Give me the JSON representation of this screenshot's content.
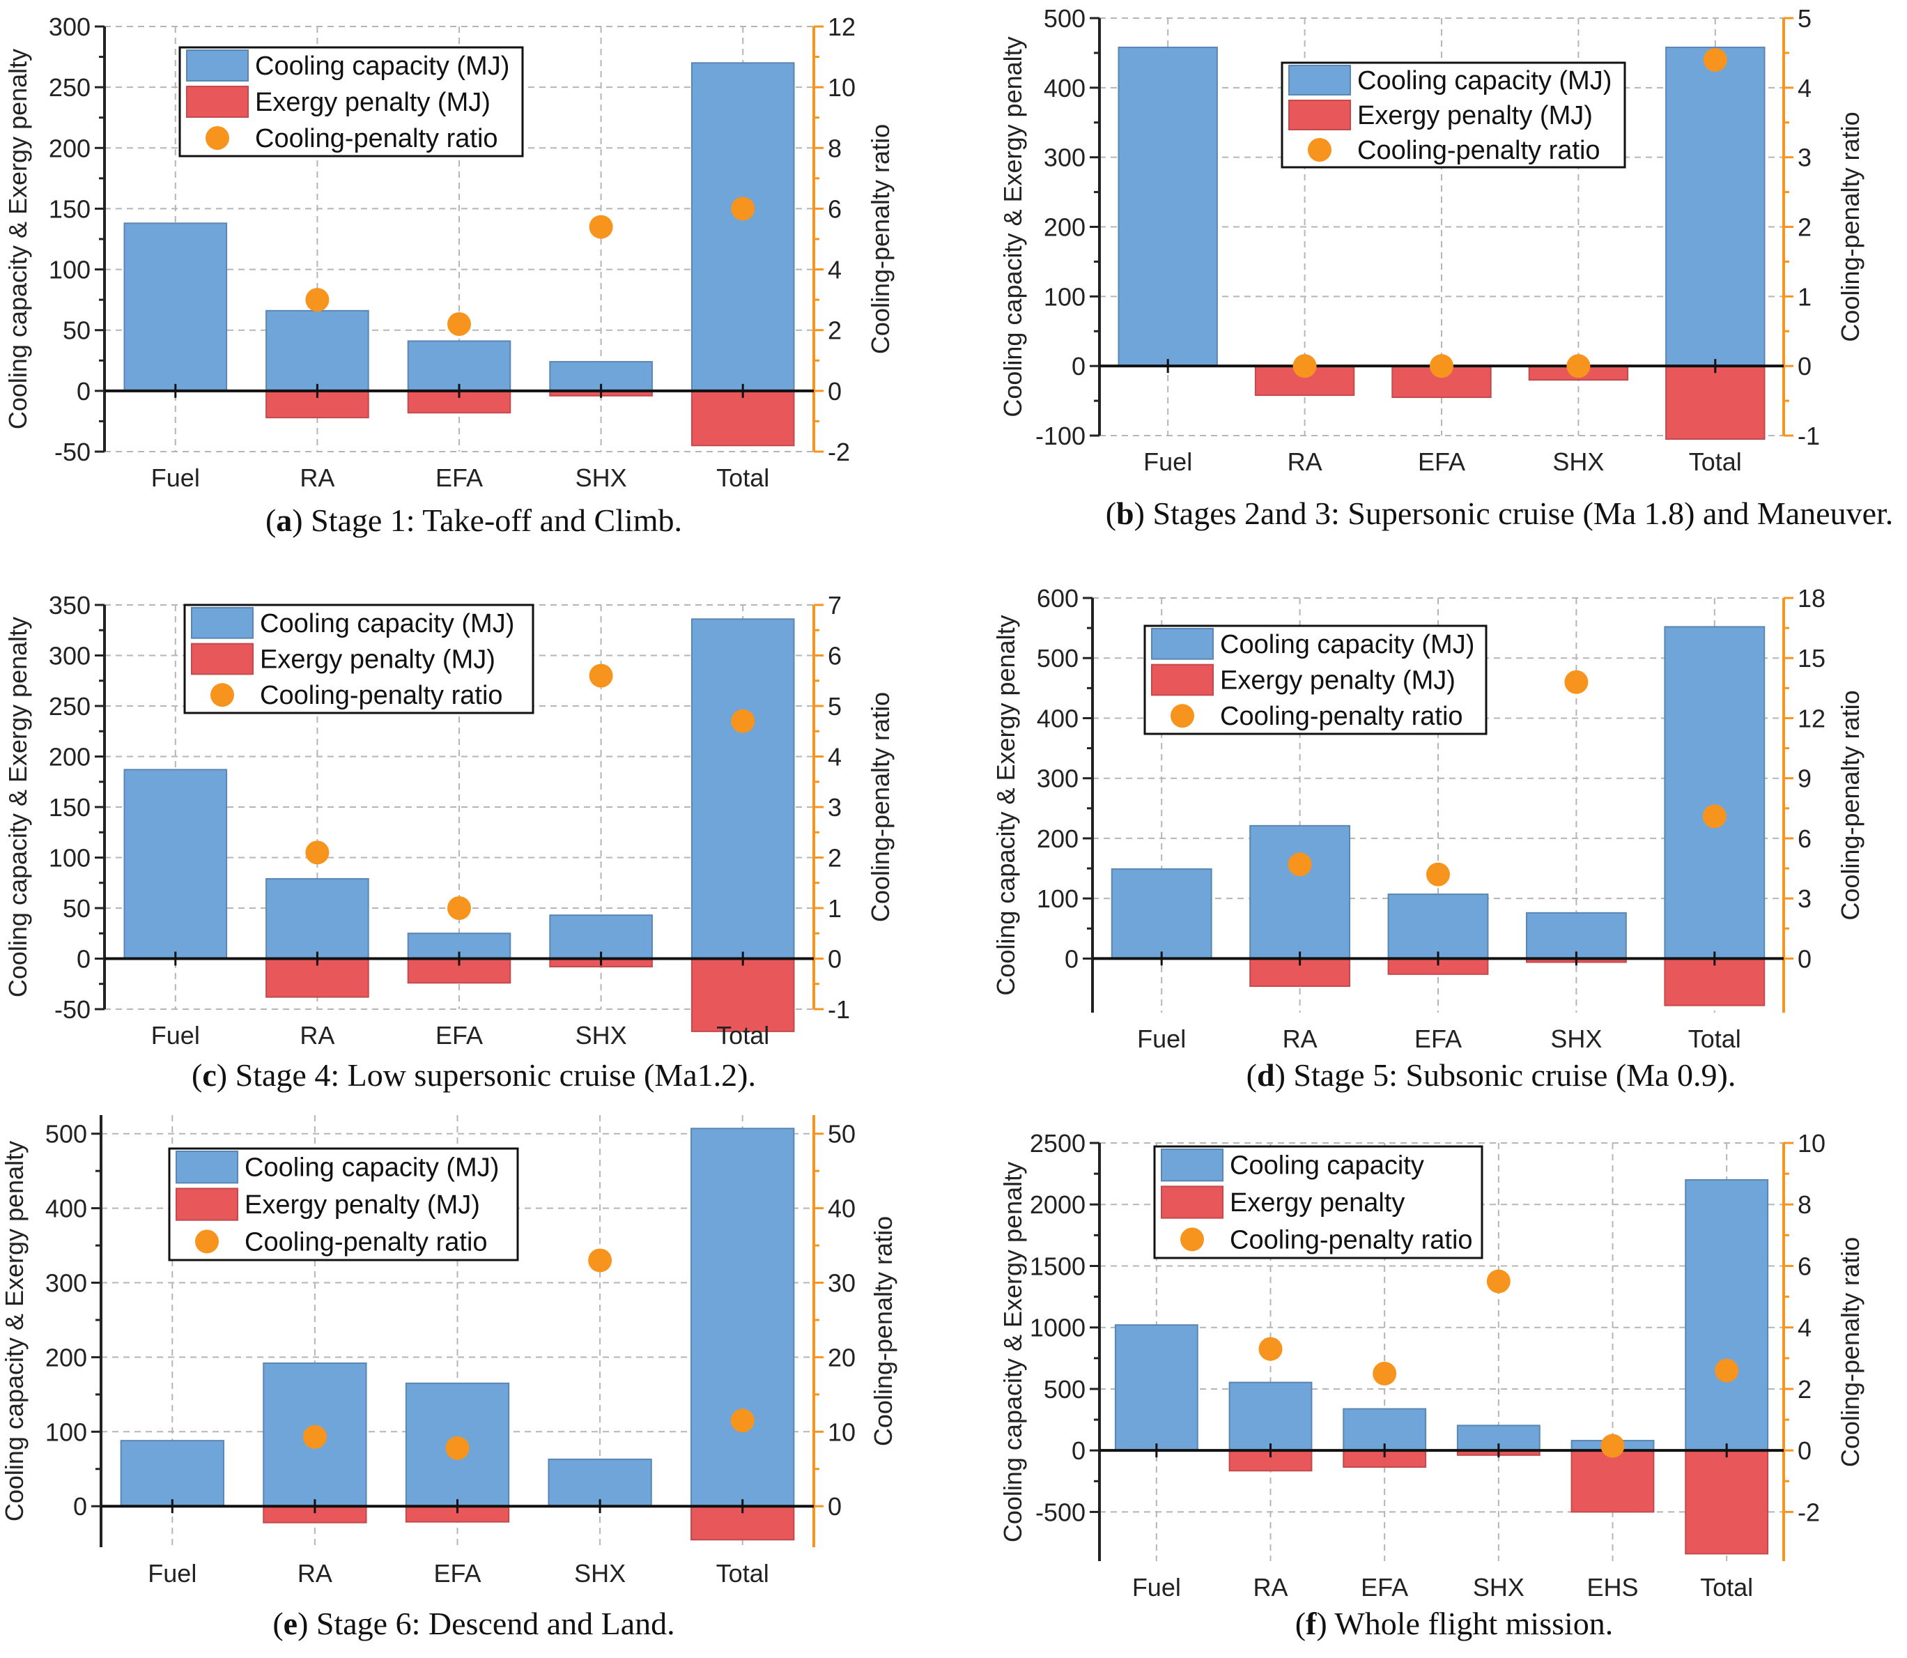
{
  "colors": {
    "cooling": "#6fa5d8",
    "cooling_edge": "#5a86b3",
    "penalty": "#e8585a",
    "ratio": "#f7941d",
    "right_axis": "#f7941d",
    "grid": "#b5b5b5"
  },
  "chart_data": [
    {
      "type": "bar",
      "panel_id": "a",
      "caption_label": "a",
      "caption_text": "Stage 1: Take-off and Climb.",
      "categories": [
        "Fuel",
        "RA",
        "EFA",
        "SHX",
        "Total"
      ],
      "ylabel": "Cooling capacity & Exergy penalty",
      "y2label": "Cooling-penalty ratio",
      "ylim": [
        -50,
        300
      ],
      "yticks": [
        -50,
        0,
        50,
        100,
        150,
        200,
        250,
        300
      ],
      "y2lim": [
        -2,
        12
      ],
      "y2ticks": [
        -2,
        0,
        2,
        4,
        6,
        8,
        10,
        12
      ],
      "legend_labels": [
        "Cooling capacity (MJ)",
        "Exergy penalty (MJ)",
        "Cooling-penalty ratio"
      ],
      "series": [
        {
          "name": "Cooling capacity (MJ)",
          "axis": "left",
          "values": [
            138,
            66,
            41,
            24,
            270
          ]
        },
        {
          "name": "Exergy penalty (MJ)",
          "axis": "left",
          "values": [
            0,
            -22,
            -18,
            -4,
            -45
          ]
        },
        {
          "name": "Cooling-penalty ratio",
          "axis": "right",
          "values": [
            null,
            3.0,
            2.2,
            5.4,
            6.0
          ]
        }
      ]
    },
    {
      "type": "bar",
      "panel_id": "b",
      "caption_label": "b",
      "caption_text": "Stages 2and 3: Supersonic cruise (Ma 1.8) and Maneuver.",
      "categories": [
        "Fuel",
        "RA",
        "EFA",
        "SHX",
        "Total"
      ],
      "ylabel": "Cooling capacity & Exergy penalty",
      "y2label": "Cooling-penalty ratio",
      "ylim": [
        -100,
        500
      ],
      "yticks": [
        -100,
        0,
        100,
        200,
        300,
        400,
        500
      ],
      "y2lim": [
        -1,
        5
      ],
      "y2ticks": [
        -1,
        0,
        1,
        2,
        3,
        4,
        5
      ],
      "legend_labels": [
        "Cooling capacity (MJ)",
        "Exergy penalty (MJ)",
        "Cooling-penalty ratio"
      ],
      "series": [
        {
          "name": "Cooling capacity (MJ)",
          "axis": "left",
          "values": [
            458,
            0,
            0,
            0,
            458
          ]
        },
        {
          "name": "Exergy penalty (MJ)",
          "axis": "left",
          "values": [
            0,
            -42,
            -45,
            -20,
            -105
          ]
        },
        {
          "name": "Cooling-penalty ratio",
          "axis": "right",
          "values": [
            null,
            0,
            0,
            0,
            4.4
          ]
        }
      ]
    },
    {
      "type": "bar",
      "panel_id": "c",
      "caption_label": "c",
      "caption_text": "Stage 4: Low supersonic cruise (Ma1.2).",
      "categories": [
        "Fuel",
        "RA",
        "EFA",
        "SHX",
        "Total"
      ],
      "ylabel": "Cooling capacity & Exergy penalty",
      "y2label": "Cooling-penalty ratio",
      "ylim": [
        -50,
        350
      ],
      "yticks": [
        -50,
        0,
        50,
        100,
        150,
        200,
        250,
        300,
        350
      ],
      "y2lim": [
        -1,
        7
      ],
      "y2ticks": [
        -1,
        0,
        1,
        2,
        3,
        4,
        5,
        6,
        7
      ],
      "legend_labels": [
        "Cooling capacity (MJ)",
        "Exergy penalty (MJ)",
        "Cooling-penalty ratio"
      ],
      "series": [
        {
          "name": "Cooling capacity (MJ)",
          "axis": "left",
          "values": [
            187,
            79,
            25,
            43,
            336
          ]
        },
        {
          "name": "Exergy penalty (MJ)",
          "axis": "left",
          "values": [
            0,
            -38,
            -24,
            -8,
            -72
          ]
        },
        {
          "name": "Cooling-penalty ratio",
          "axis": "right",
          "values": [
            null,
            2.1,
            1.0,
            5.6,
            4.7
          ]
        }
      ]
    },
    {
      "type": "bar",
      "panel_id": "d",
      "caption_label": "d",
      "caption_text": "Stage 5: Subsonic cruise (Ma 0.9).",
      "categories": [
        "Fuel",
        "RA",
        "EFA",
        "SHX",
        "Total"
      ],
      "ylabel": "Cooling capacity & Exergy penalty",
      "y2label": "Cooling-penalty ratio",
      "ylim": [
        -90,
        600
      ],
      "yticks": [
        0,
        100,
        200,
        300,
        400,
        500,
        600
      ],
      "y2lim": [
        -2.7,
        18
      ],
      "y2ticks": [
        0,
        3,
        6,
        9,
        12,
        15,
        18
      ],
      "legend_labels": [
        "Cooling capacity (MJ)",
        "Exergy penalty (MJ)",
        "Cooling-penalty ratio"
      ],
      "series": [
        {
          "name": "Cooling capacity (MJ)",
          "axis": "left",
          "values": [
            149,
            221,
            107,
            76,
            552
          ]
        },
        {
          "name": "Exergy penalty (MJ)",
          "axis": "left",
          "values": [
            0,
            -46,
            -26,
            -6,
            -78
          ]
        },
        {
          "name": "Cooling-penalty ratio",
          "axis": "right",
          "values": [
            null,
            4.7,
            4.2,
            13.8,
            7.1
          ]
        }
      ]
    },
    {
      "type": "bar",
      "panel_id": "e",
      "caption_label": "e",
      "caption_text": "Stage 6: Descend and Land.",
      "categories": [
        "Fuel",
        "RA",
        "EFA",
        "SHX",
        "Total"
      ],
      "ylabel": "Cooling capacity & Exergy penalty",
      "y2label": "Cooling-penalty ratio",
      "ylim": [
        -55,
        525
      ],
      "yticks": [
        0,
        100,
        200,
        300,
        400,
        500
      ],
      "y2lim": [
        -5.5,
        52.5
      ],
      "y2ticks": [
        0,
        10,
        20,
        30,
        40,
        50
      ],
      "legend_labels": [
        "Cooling capacity (MJ)",
        "Exergy penalty (MJ)",
        "Cooling-penalty ratio"
      ],
      "series": [
        {
          "name": "Cooling capacity (MJ)",
          "axis": "left",
          "values": [
            88,
            192,
            165,
            63,
            507
          ]
        },
        {
          "name": "Exergy penalty (MJ)",
          "axis": "left",
          "values": [
            0,
            -22,
            -21,
            0,
            -45
          ]
        },
        {
          "name": "Cooling-penalty ratio",
          "axis": "right",
          "values": [
            null,
            9.3,
            7.8,
            33.0,
            11.5
          ]
        }
      ]
    },
    {
      "type": "bar",
      "panel_id": "f",
      "caption_label": "f",
      "caption_text": "Whole flight mission.",
      "categories": [
        "Fuel",
        "RA",
        "EFA",
        "SHX",
        "EHS",
        "Total"
      ],
      "ylabel": "Cooling capacity & Exergy penalty",
      "y2label": "Cooling-penalty ratio",
      "ylim": [
        -900,
        2500
      ],
      "yticks": [
        -500,
        0,
        500,
        1000,
        1500,
        2000,
        2500
      ],
      "y2lim": [
        -3.6,
        10
      ],
      "y2ticks": [
        -2,
        0,
        2,
        4,
        6,
        8,
        10
      ],
      "legend_labels": [
        "Cooling capacity",
        "Exergy penalty",
        "Cooling-penalty ratio"
      ],
      "series": [
        {
          "name": "Cooling capacity",
          "axis": "left",
          "values": [
            1020,
            553,
            338,
            203,
            80,
            2200
          ]
        },
        {
          "name": "Exergy penalty",
          "axis": "left",
          "values": [
            0,
            -165,
            -135,
            -38,
            -500,
            -840
          ]
        },
        {
          "name": "Cooling-penalty ratio",
          "axis": "right",
          "values": [
            null,
            3.3,
            2.5,
            5.5,
            0.15,
            2.6
          ]
        }
      ]
    }
  ]
}
